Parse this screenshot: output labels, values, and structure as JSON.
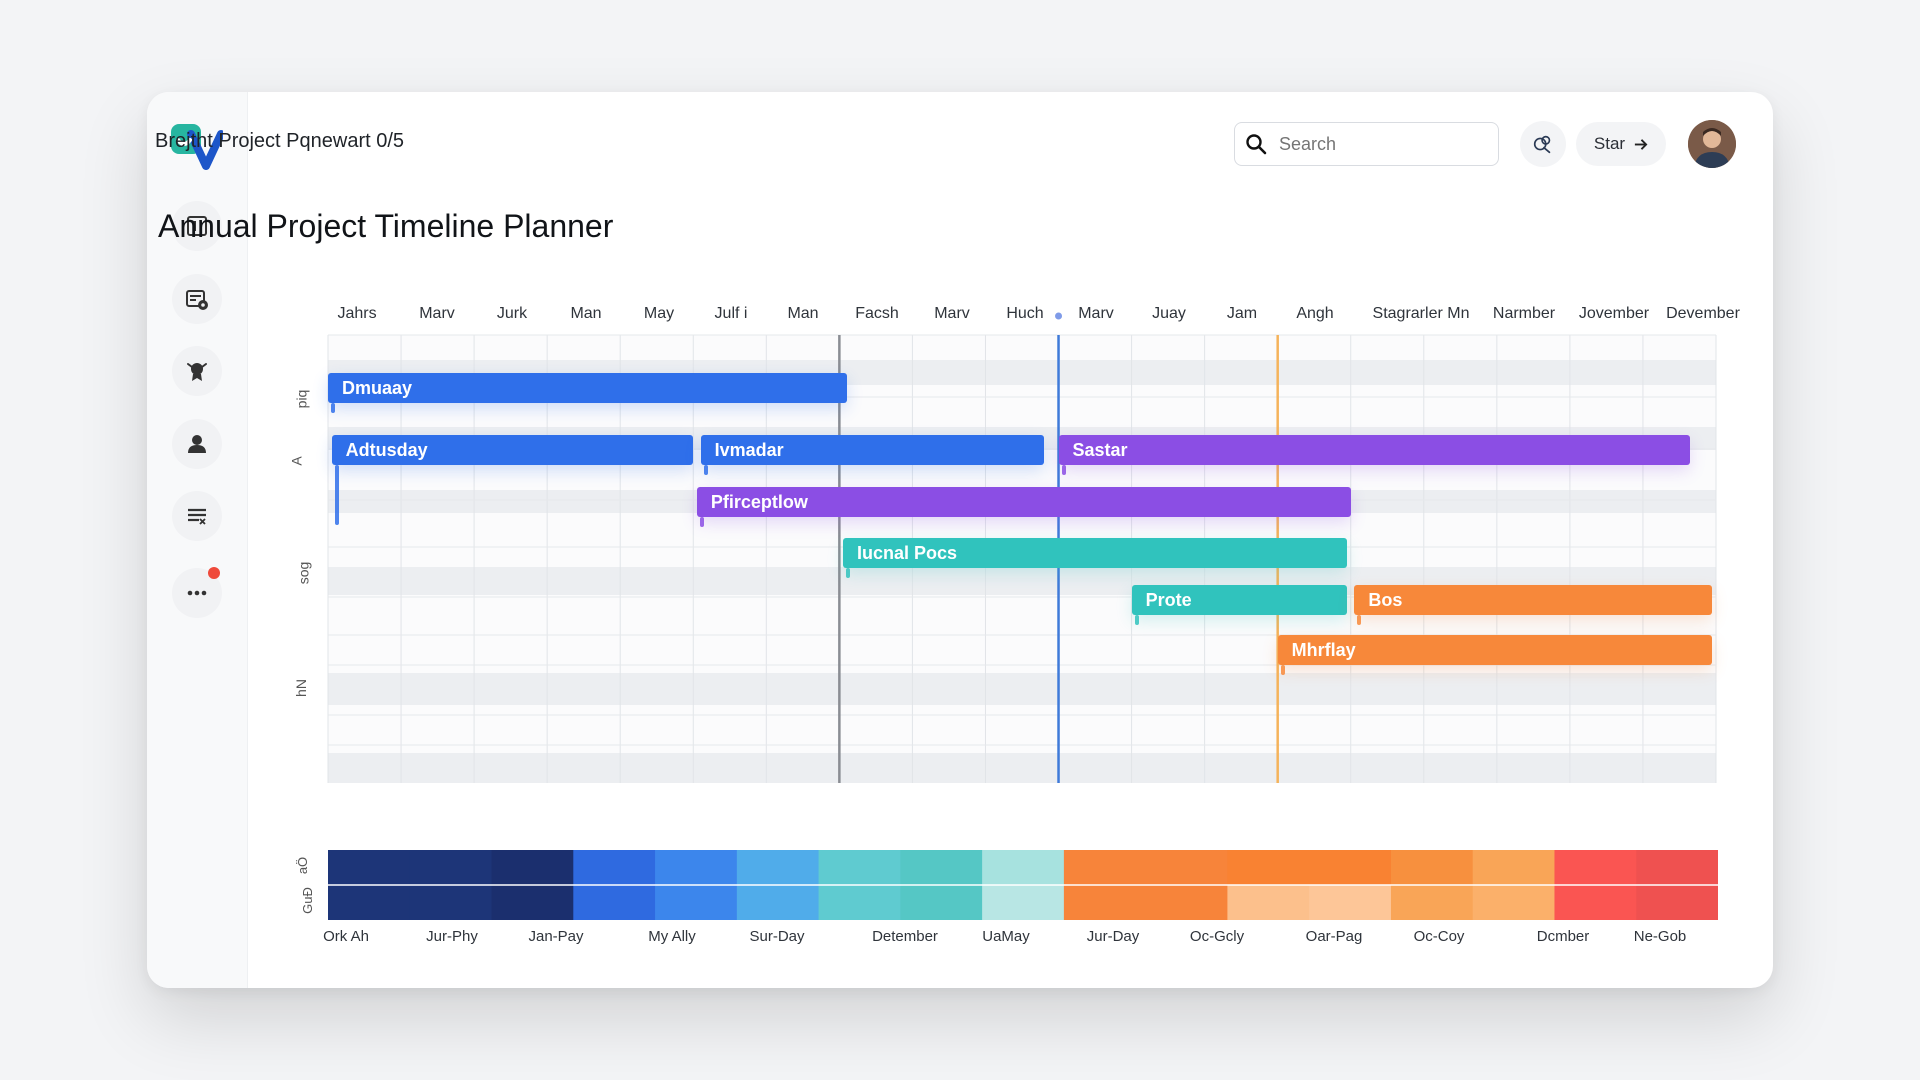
{
  "header": {
    "breadcrumb": "Brejtht Project Pqnewart 0/5",
    "search_placeholder": "Search",
    "star_label": "Star"
  },
  "page": {
    "title": "Annual Project Timeline Planner"
  },
  "sidebar": {
    "items": [
      {
        "icon": "layout-icon"
      },
      {
        "icon": "document-settings-icon"
      },
      {
        "icon": "award-icon"
      },
      {
        "icon": "user-icon"
      },
      {
        "icon": "list-icon"
      },
      {
        "icon": "more-icon",
        "has_notification": true
      }
    ]
  },
  "timeline": {
    "months": [
      "Jahrs",
      "Marv",
      "Jurk",
      "Man",
      "May",
      "Julf i",
      "Man",
      "Facsh",
      "Marv",
      "Huch",
      "Marv",
      "Juay",
      "Jam",
      "Angh",
      "Stagrarler Mn",
      "Narmber",
      "Jovember",
      "Devember"
    ],
    "row_labels": [
      "piq",
      "A",
      "sog",
      "hN"
    ],
    "bars": [
      {
        "label": "Dmuaay",
        "start": 0,
        "end": 7.1,
        "row": 0,
        "color": "#2f6fea"
      },
      {
        "label": "Adtusday",
        "start": 0.05,
        "end": 5,
        "row": 1,
        "color": "#2f6fea"
      },
      {
        "label": "Ivmadar",
        "start": 5.1,
        "end": 9.8,
        "row": 1,
        "color": "#2f6fea"
      },
      {
        "label": "Sastar",
        "start": 10,
        "end": 18.65,
        "row": 1,
        "color": "#8b4ee4"
      },
      {
        "label": "Pfirceptlow",
        "start": 5.05,
        "end": 14,
        "row": 2,
        "color": "#8b4ee4"
      },
      {
        "label": "Iucnal Pocs",
        "start": 7.05,
        "end": 13.95,
        "row": 3,
        "color": "#30c3bd"
      },
      {
        "label": "Prote",
        "start": 11,
        "end": 13.95,
        "row": 4,
        "color": "#30c3bd"
      },
      {
        "label": "Bos",
        "start": 14.05,
        "end": 18.95,
        "row": 4,
        "color": "#f7883a"
      },
      {
        "label": "Mhrflay",
        "start": 13,
        "end": 18.95,
        "row": 5,
        "color": "#f7883a"
      }
    ],
    "markers": [
      {
        "at": 7,
        "color": "#8a8d93"
      },
      {
        "at": 10,
        "color": "#3f7ad9"
      },
      {
        "at": 13,
        "color": "#f5b35b"
      }
    ],
    "heatmap_labels": [
      "aÖ",
      "GuÐ"
    ],
    "heatmap_top": [
      "#1d3578",
      "#1d3578",
      "#1b2f6e",
      "#2f6ae0",
      "#3c86ec",
      "#50acea",
      "#5fcbd0",
      "#55c7c5",
      "#a7e2df",
      "#f7843a",
      "#f7843a",
      "#f98232",
      "#f98232",
      "#f7903e",
      "#f9a557",
      "#fa5552",
      "#ef5150"
    ],
    "heatmap_bottom": [
      "#1d3578",
      "#1d3578",
      "#1b2f6e",
      "#2f6ae0",
      "#3c86ec",
      "#50acea",
      "#5fcbd0",
      "#55c7c5",
      "#b8e6e4",
      "#f7843a",
      "#f7843a",
      "#fcc08c",
      "#fdc698",
      "#f9a557",
      "#fbb06a",
      "#fa5552",
      "#ef5150"
    ],
    "bottom_labels": [
      "Ork Ah",
      "Jur-Phy",
      "Jan-Pay",
      "My Ally",
      "Sur-Day",
      "Detember",
      "UaMay",
      "Jur-Day",
      "Oc-Gcly",
      "Oar-Pag",
      "Oc-Coy",
      "Dcmber",
      "Ne-Gob"
    ]
  }
}
